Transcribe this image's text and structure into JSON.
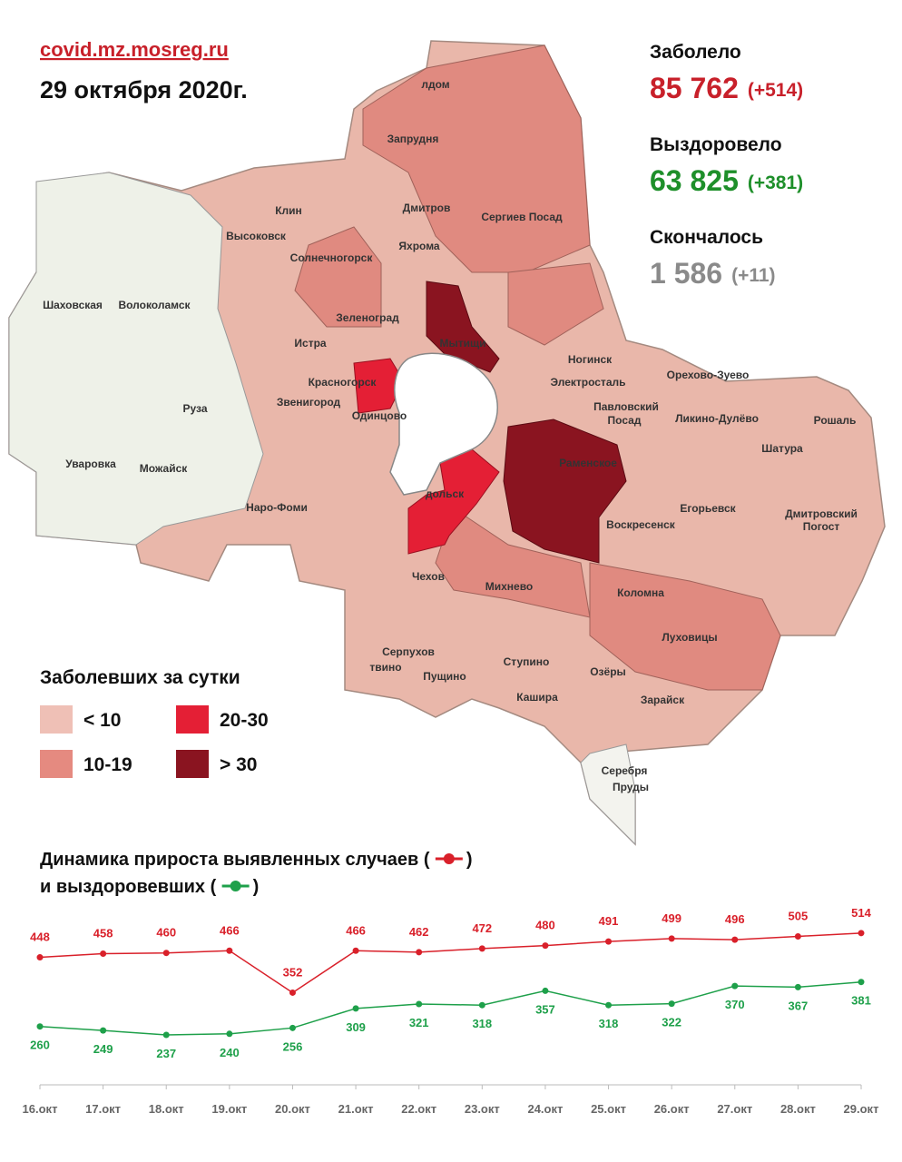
{
  "header": {
    "site": "covid.mz.mosreg.ru",
    "date": "29 октября 2020г."
  },
  "stats": [
    {
      "label": "Заболело",
      "total": "85 762",
      "delta": "(+514)"
    },
    {
      "label": "Выздоровело",
      "total": "63 825",
      "delta": "(+381)"
    },
    {
      "label": "Скончалось",
      "total": "1 586",
      "delta": "(+11)"
    }
  ],
  "legend": {
    "title": "Заболевших за сутки",
    "items": [
      {
        "label": "< 10",
        "color": "#efc0b6"
      },
      {
        "label": "20-30",
        "color": "#e41f35"
      },
      {
        "label": "10-19",
        "color": "#e58a80"
      },
      {
        "label": "> 30",
        "color": "#8a1420"
      }
    ]
  },
  "map": {
    "labels": [
      "лдом",
      "Запрудня",
      "Клин",
      "Дмитров",
      "Сергиев Посад",
      "Высоковск",
      "Яхрома",
      "Солнечногорск",
      "Шаховская",
      "Волоколамск",
      "Зеленоград",
      "Мытищи",
      "Истра",
      "Ногинск",
      "Орехово-Зуево",
      "Электросталь",
      "Красногорск",
      "Павловский",
      "Посад",
      "Звенигород",
      "Ликино-Дулёво",
      "Рошаль",
      "Одинцово",
      "Руза",
      "Раменское",
      "Шатура",
      "Уваровка",
      "Можайск",
      "дольск",
      "Наро-Фоми",
      "Воскресенск",
      "Егорьевск",
      "Дмитровский",
      "Погост",
      "Чехов",
      "Михнево",
      "Коломна",
      "Луховицы",
      "Серпухов",
      "твино",
      "Пущино",
      "Ступино",
      "Озёры",
      "Кашира",
      "Зарайск",
      "Серебря",
      "Пруды"
    ]
  },
  "chart_data": {
    "type": "line",
    "title": [
      "Динамика прироста выявленных случаев (",
      ")"
    ],
    "subtitle": [
      "и выздоровевших (",
      ")"
    ],
    "categories": [
      "16.окт",
      "17.окт",
      "18.окт",
      "19.окт",
      "20.окт",
      "21.окт",
      "22.окт",
      "23.окт",
      "24.окт",
      "25.окт",
      "26.окт",
      "27.окт",
      "28.окт",
      "29.окт"
    ],
    "series": [
      {
        "color": "#d9202a",
        "values": [
          448,
          458,
          460,
          466,
          352,
          466,
          462,
          472,
          480,
          491,
          499,
          496,
          505,
          514
        ]
      },
      {
        "color": "#1ea04a",
        "values": [
          260,
          249,
          237,
          240,
          256,
          309,
          321,
          318,
          357,
          318,
          322,
          370,
          367,
          381
        ]
      }
    ]
  }
}
